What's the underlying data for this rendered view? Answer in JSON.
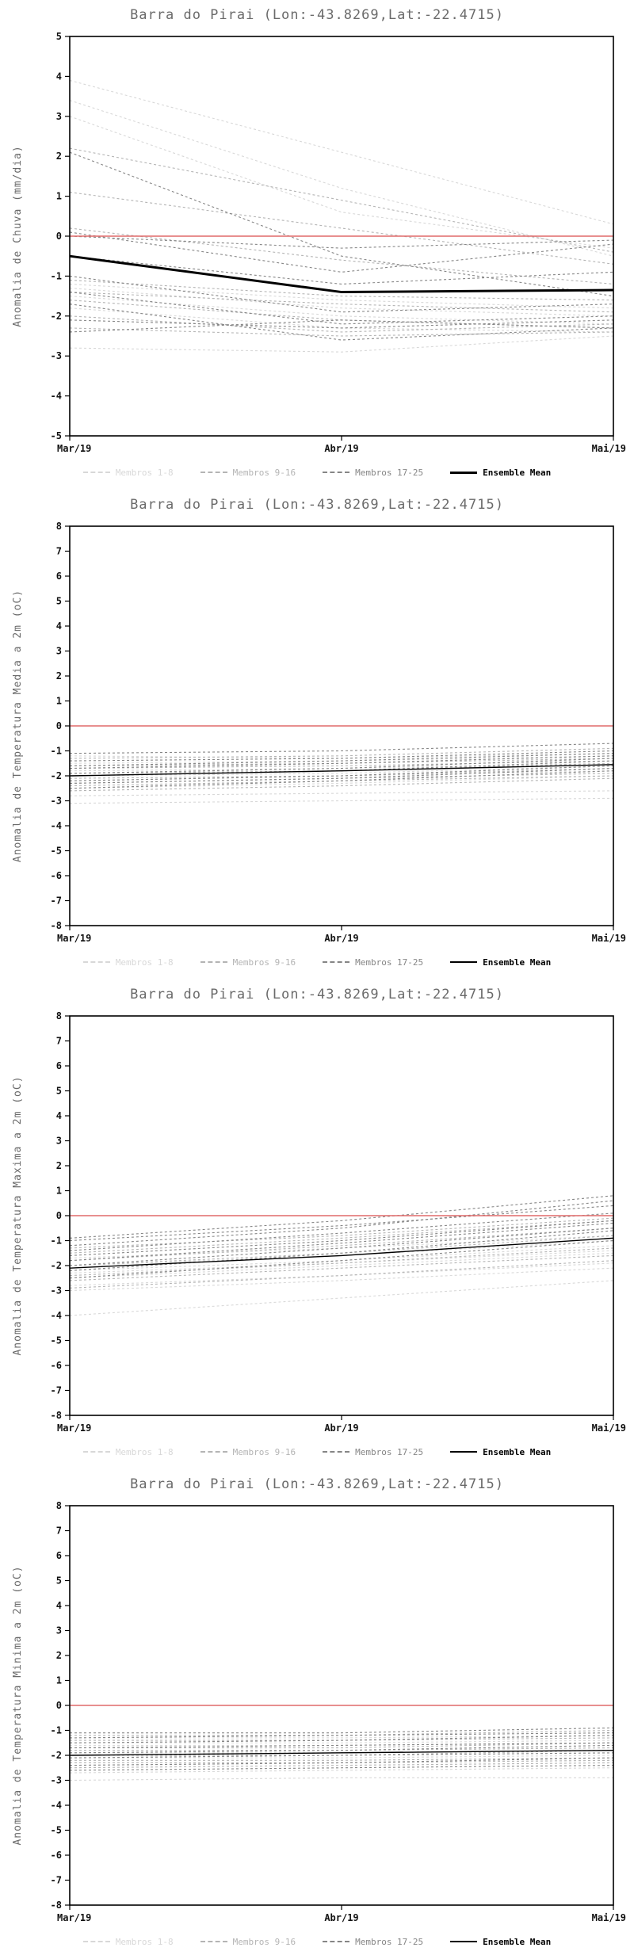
{
  "colors": {
    "zero_line": "#e06a6a",
    "axis": "#000000",
    "title_text": "#6a6a6a",
    "group1": "#d8d8d8",
    "group2": "#b4b4b4",
    "group3": "#868686",
    "mean": "#000000"
  },
  "chart_data": [
    {
      "type": "line",
      "title": "Barra do Pirai (Lon:-43.8269,Lat:-22.4715)",
      "ylabel": "Anomalia de Chuva (mm/dia)",
      "xlabel": "",
      "x_labels": [
        "Mar/19",
        "Abr/19",
        "Mai/19"
      ],
      "ylim": [
        -5,
        5
      ],
      "ytick_step": 1,
      "zero_line": 0,
      "mean_width": 3,
      "legend": [
        {
          "label": "Membros 1-8",
          "color": "#d8d8d8",
          "dash": true
        },
        {
          "label": "Membros 9-16",
          "color": "#b4b4b4",
          "dash": true
        },
        {
          "label": "Membros 17-25",
          "color": "#868686",
          "dash": true
        },
        {
          "label": "Ensemble Mean",
          "color": "#000000",
          "dash": false
        }
      ],
      "series": [
        {
          "g": 1,
          "v": [
            3.9,
            2.1,
            0.3
          ]
        },
        {
          "g": 1,
          "v": [
            3.4,
            1.2,
            -0.5
          ]
        },
        {
          "g": 1,
          "v": [
            3.0,
            0.6,
            -0.3
          ]
        },
        {
          "g": 1,
          "v": [
            -1.3,
            -1.8,
            -2.0
          ]
        },
        {
          "g": 1,
          "v": [
            -1.5,
            -2.0,
            -2.2
          ]
        },
        {
          "g": 1,
          "v": [
            -2.8,
            -2.9,
            -2.5
          ]
        },
        {
          "g": 1,
          "v": [
            -1.8,
            -2.3,
            -2.4
          ]
        },
        {
          "g": 1,
          "v": [
            -1.2,
            -1.6,
            -1.8
          ]
        },
        {
          "g": 2,
          "v": [
            2.2,
            0.9,
            -0.4
          ]
        },
        {
          "g": 2,
          "v": [
            1.1,
            0.2,
            -0.7
          ]
        },
        {
          "g": 2,
          "v": [
            0.2,
            -0.6,
            -1.2
          ]
        },
        {
          "g": 2,
          "v": [
            -1.4,
            -1.7,
            -1.9
          ]
        },
        {
          "g": 2,
          "v": [
            -1.6,
            -2.1,
            -2.3
          ]
        },
        {
          "g": 2,
          "v": [
            -2.0,
            -2.4,
            -2.2
          ]
        },
        {
          "g": 2,
          "v": [
            -1.1,
            -1.5,
            -1.6
          ]
        },
        {
          "g": 2,
          "v": [
            -2.3,
            -2.5,
            -2.4
          ]
        },
        {
          "g": 3,
          "v": [
            2.1,
            -0.5,
            -1.5
          ]
        },
        {
          "g": 3,
          "v": [
            0.1,
            -0.9,
            -0.2
          ]
        },
        {
          "g": 3,
          "v": [
            -0.5,
            -1.2,
            -0.9
          ]
        },
        {
          "g": 3,
          "v": [
            -1.0,
            -1.9,
            -1.7
          ]
        },
        {
          "g": 3,
          "v": [
            -1.4,
            -2.2,
            -2.0
          ]
        },
        {
          "g": 3,
          "v": [
            -1.7,
            -2.6,
            -2.3
          ]
        },
        {
          "g": 3,
          "v": [
            -2.1,
            -2.3,
            -2.1
          ]
        },
        {
          "g": 3,
          "v": [
            -2.4,
            -2.1,
            -2.3
          ]
        },
        {
          "g": 3,
          "v": [
            0.0,
            -0.3,
            -0.1
          ]
        }
      ],
      "mean": [
        -0.5,
        -1.4,
        -1.35
      ]
    },
    {
      "type": "line",
      "title": "Barra do Pirai (Lon:-43.8269,Lat:-22.4715)",
      "ylabel": "Anomalia de Temperatura Media a 2m (oC)",
      "xlabel": "",
      "x_labels": [
        "Mar/19",
        "Abr/19",
        "Mai/19"
      ],
      "ylim": [
        -8,
        8
      ],
      "ytick_step": 1,
      "zero_line": 0,
      "mean_width": 1.4,
      "legend": [
        {
          "label": "Membros 1-8",
          "color": "#d8d8d8",
          "dash": true
        },
        {
          "label": "Membros 9-16",
          "color": "#b4b4b4",
          "dash": true
        },
        {
          "label": "Membros 17-25",
          "color": "#868686",
          "dash": true
        },
        {
          "label": "Ensemble Mean",
          "color": "#000000",
          "dash": false
        }
      ],
      "series": [
        {
          "g": 1,
          "v": [
            -1.2,
            -1.3,
            -1.1
          ]
        },
        {
          "g": 1,
          "v": [
            -1.5,
            -1.4,
            -1.2
          ]
        },
        {
          "g": 1,
          "v": [
            -1.8,
            -1.7,
            -1.5
          ]
        },
        {
          "g": 1,
          "v": [
            -2.0,
            -1.9,
            -1.6
          ]
        },
        {
          "g": 1,
          "v": [
            -2.2,
            -2.0,
            -1.8
          ]
        },
        {
          "g": 1,
          "v": [
            -2.5,
            -2.3,
            -2.0
          ]
        },
        {
          "g": 1,
          "v": [
            -2.8,
            -2.7,
            -2.6
          ]
        },
        {
          "g": 1,
          "v": [
            -3.1,
            -3.0,
            -2.9
          ]
        },
        {
          "g": 2,
          "v": [
            -1.3,
            -1.2,
            -0.9
          ]
        },
        {
          "g": 2,
          "v": [
            -1.6,
            -1.5,
            -1.3
          ]
        },
        {
          "g": 2,
          "v": [
            -1.9,
            -1.8,
            -1.5
          ]
        },
        {
          "g": 2,
          "v": [
            -2.1,
            -2.0,
            -1.7
          ]
        },
        {
          "g": 2,
          "v": [
            -2.3,
            -2.1,
            -1.9
          ]
        },
        {
          "g": 2,
          "v": [
            -2.6,
            -2.4,
            -2.1
          ]
        },
        {
          "g": 2,
          "v": [
            -1.7,
            -1.6,
            -1.4
          ]
        },
        {
          "g": 2,
          "v": [
            -2.4,
            -2.2,
            -2.0
          ]
        },
        {
          "g": 3,
          "v": [
            -1.1,
            -1.0,
            -0.7
          ]
        },
        {
          "g": 3,
          "v": [
            -1.4,
            -1.3,
            -1.0
          ]
        },
        {
          "g": 3,
          "v": [
            -1.7,
            -1.5,
            -1.2
          ]
        },
        {
          "g": 3,
          "v": [
            -2.0,
            -1.8,
            -1.4
          ]
        },
        {
          "g": 3,
          "v": [
            -2.2,
            -2.0,
            -1.6
          ]
        },
        {
          "g": 3,
          "v": [
            -2.5,
            -2.2,
            -1.8
          ]
        },
        {
          "g": 3,
          "v": [
            -1.9,
            -1.7,
            -1.3
          ]
        },
        {
          "g": 3,
          "v": [
            -2.3,
            -2.1,
            -1.7
          ]
        },
        {
          "g": 3,
          "v": [
            -1.6,
            -1.4,
            -1.1
          ]
        }
      ],
      "mean": [
        -2.0,
        -1.8,
        -1.55
      ]
    },
    {
      "type": "line",
      "title": "Barra do Pirai (Lon:-43.8269,Lat:-22.4715)",
      "ylabel": "Anomalia de Temperatura Maxima a 2m (oC)",
      "xlabel": "",
      "x_labels": [
        "Mar/19",
        "Abr/19",
        "Mai/19"
      ],
      "ylim": [
        -8,
        8
      ],
      "ytick_step": 1,
      "zero_line": 0,
      "mean_width": 1.4,
      "legend": [
        {
          "label": "Membros 1-8",
          "color": "#d8d8d8",
          "dash": true
        },
        {
          "label": "Membros 9-16",
          "color": "#b4b4b4",
          "dash": true
        },
        {
          "label": "Membros 17-25",
          "color": "#868686",
          "dash": true
        },
        {
          "label": "Ensemble Mean",
          "color": "#000000",
          "dash": false
        }
      ],
      "series": [
        {
          "g": 1,
          "v": [
            -2.2,
            -1.8,
            -1.2
          ]
        },
        {
          "g": 1,
          "v": [
            -2.5,
            -2.0,
            -1.5
          ]
        },
        {
          "g": 1,
          "v": [
            -4.0,
            -3.3,
            -2.6
          ]
        },
        {
          "g": 1,
          "v": [
            -2.8,
            -2.4,
            -1.9
          ]
        },
        {
          "g": 1,
          "v": [
            -2.0,
            -1.6,
            -1.0
          ]
        },
        {
          "g": 1,
          "v": [
            -1.7,
            -1.3,
            -0.8
          ]
        },
        {
          "g": 1,
          "v": [
            -2.3,
            -1.9,
            -1.4
          ]
        },
        {
          "g": 1,
          "v": [
            -3.0,
            -2.6,
            -2.1
          ]
        },
        {
          "g": 2,
          "v": [
            -1.5,
            -0.9,
            -0.2
          ]
        },
        {
          "g": 2,
          "v": [
            -1.8,
            -1.2,
            -0.5
          ]
        },
        {
          "g": 2,
          "v": [
            -2.1,
            -1.6,
            -0.9
          ]
        },
        {
          "g": 2,
          "v": [
            -2.4,
            -1.9,
            -1.3
          ]
        },
        {
          "g": 2,
          "v": [
            -2.6,
            -2.1,
            -1.6
          ]
        },
        {
          "g": 2,
          "v": [
            -1.3,
            -0.8,
            -0.1
          ]
        },
        {
          "g": 2,
          "v": [
            -2.0,
            -1.5,
            -0.8
          ]
        },
        {
          "g": 2,
          "v": [
            -2.9,
            -2.4,
            -1.8
          ]
        },
        {
          "g": 3,
          "v": [
            -1.0,
            -0.4,
            0.4
          ]
        },
        {
          "g": 3,
          "v": [
            -1.4,
            -0.7,
            0.1
          ]
        },
        {
          "g": 3,
          "v": [
            -1.8,
            -1.1,
            -0.3
          ]
        },
        {
          "g": 3,
          "v": [
            -2.2,
            -1.5,
            -0.6
          ]
        },
        {
          "g": 3,
          "v": [
            -2.5,
            -1.8,
            -1.0
          ]
        },
        {
          "g": 3,
          "v": [
            -1.2,
            -0.5,
            0.6
          ]
        },
        {
          "g": 3,
          "v": [
            -1.6,
            -1.0,
            -0.2
          ]
        },
        {
          "g": 3,
          "v": [
            -2.0,
            -1.3,
            -0.5
          ]
        },
        {
          "g": 3,
          "v": [
            -0.9,
            -0.2,
            0.8
          ]
        }
      ],
      "mean": [
        -2.1,
        -1.6,
        -0.9
      ]
    },
    {
      "type": "line",
      "title": "Barra do Pirai (Lon:-43.8269,Lat:-22.4715)",
      "ylabel": "Anomalia de Temperatura Minima a 2m (oC)",
      "xlabel": "",
      "x_labels": [
        "Mar/19",
        "Abr/19",
        "Mai/19"
      ],
      "ylim": [
        -8,
        8
      ],
      "ytick_step": 1,
      "zero_line": 0,
      "mean_width": 1.4,
      "legend": [
        {
          "label": "Membros 1-8",
          "color": "#d8d8d8",
          "dash": true
        },
        {
          "label": "Membros 9-16",
          "color": "#b4b4b4",
          "dash": true
        },
        {
          "label": "Membros 17-25",
          "color": "#868686",
          "dash": true
        },
        {
          "label": "Ensemble Mean",
          "color": "#000000",
          "dash": false
        }
      ],
      "series": [
        {
          "g": 1,
          "v": [
            -1.3,
            -1.3,
            -1.2
          ]
        },
        {
          "g": 1,
          "v": [
            -1.6,
            -1.6,
            -1.5
          ]
        },
        {
          "g": 1,
          "v": [
            -1.9,
            -1.9,
            -1.8
          ]
        },
        {
          "g": 1,
          "v": [
            -2.1,
            -2.1,
            -2.0
          ]
        },
        {
          "g": 1,
          "v": [
            -2.4,
            -2.3,
            -2.2
          ]
        },
        {
          "g": 1,
          "v": [
            -2.7,
            -2.6,
            -2.5
          ]
        },
        {
          "g": 1,
          "v": [
            -3.0,
            -2.9,
            -2.9
          ]
        },
        {
          "g": 1,
          "v": [
            -1.5,
            -1.5,
            -1.4
          ]
        },
        {
          "g": 2,
          "v": [
            -1.2,
            -1.2,
            -1.0
          ]
        },
        {
          "g": 2,
          "v": [
            -1.7,
            -1.7,
            -1.5
          ]
        },
        {
          "g": 2,
          "v": [
            -2.0,
            -2.0,
            -1.8
          ]
        },
        {
          "g": 2,
          "v": [
            -2.2,
            -2.2,
            -2.1
          ]
        },
        {
          "g": 2,
          "v": [
            -2.5,
            -2.4,
            -2.3
          ]
        },
        {
          "g": 2,
          "v": [
            -1.4,
            -1.4,
            -1.3
          ]
        },
        {
          "g": 2,
          "v": [
            -1.8,
            -1.8,
            -1.7
          ]
        },
        {
          "g": 2,
          "v": [
            -2.3,
            -2.3,
            -2.2
          ]
        },
        {
          "g": 3,
          "v": [
            -1.1,
            -1.1,
            -0.9
          ]
        },
        {
          "g": 3,
          "v": [
            -1.5,
            -1.4,
            -1.2
          ]
        },
        {
          "g": 3,
          "v": [
            -1.9,
            -1.8,
            -1.6
          ]
        },
        {
          "g": 3,
          "v": [
            -2.1,
            -2.0,
            -1.9
          ]
        },
        {
          "g": 3,
          "v": [
            -2.4,
            -2.3,
            -2.1
          ]
        },
        {
          "g": 3,
          "v": [
            -2.6,
            -2.5,
            -2.4
          ]
        },
        {
          "g": 3,
          "v": [
            -1.3,
            -1.2,
            -1.1
          ]
        },
        {
          "g": 3,
          "v": [
            -2.0,
            -1.9,
            -1.8
          ]
        },
        {
          "g": 3,
          "v": [
            -1.7,
            -1.6,
            -1.5
          ]
        }
      ],
      "mean": [
        -2.0,
        -1.9,
        -1.8
      ]
    }
  ]
}
